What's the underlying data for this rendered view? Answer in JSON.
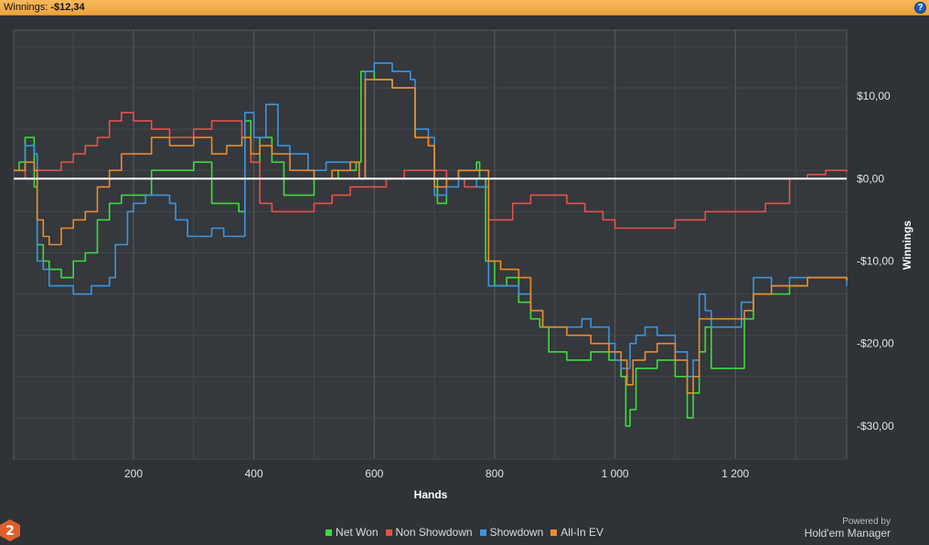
{
  "header": {
    "label": "Winnings:",
    "value": "-$12,34",
    "help_icon": "?"
  },
  "brand": {
    "powered": "Powered by",
    "name": "Hold'em Manager",
    "logo_text": "2"
  },
  "chart_data": {
    "type": "line",
    "xlabel": "Hands",
    "ylabel": "Winnings",
    "xlim": [
      1,
      1385
    ],
    "ylim": [
      -34,
      18
    ],
    "x_ticks": [
      200,
      400,
      600,
      800,
      1000,
      1200
    ],
    "x_tick_labels": [
      "200",
      "400",
      "600",
      "800",
      "1 000",
      "1 200"
    ],
    "y_ticks": [
      10,
      0,
      -10,
      -20,
      -30
    ],
    "y_tick_labels": [
      "$10,00",
      "$0,00",
      "-$10,00",
      "-$20,00",
      "-$30,00"
    ],
    "grid": true,
    "legend_position": "bottom",
    "series": [
      {
        "name": "Net Won",
        "color": "#3ddc3d",
        "points": [
          [
            1,
            1
          ],
          [
            10,
            2
          ],
          [
            20,
            5
          ],
          [
            30,
            5
          ],
          [
            35,
            -1
          ],
          [
            40,
            -8
          ],
          [
            50,
            -10
          ],
          [
            60,
            -11
          ],
          [
            80,
            -12
          ],
          [
            100,
            -10
          ],
          [
            120,
            -9
          ],
          [
            140,
            -5
          ],
          [
            160,
            -3
          ],
          [
            180,
            -2
          ],
          [
            200,
            -2
          ],
          [
            230,
            1
          ],
          [
            260,
            1
          ],
          [
            300,
            2
          ],
          [
            330,
            -3
          ],
          [
            350,
            -3
          ],
          [
            375,
            -4
          ],
          [
            385,
            7
          ],
          [
            395,
            2
          ],
          [
            410,
            5
          ],
          [
            430,
            2
          ],
          [
            450,
            -2
          ],
          [
            480,
            -2
          ],
          [
            500,
            0
          ],
          [
            520,
            0
          ],
          [
            540,
            1
          ],
          [
            555,
            1
          ],
          [
            570,
            2
          ],
          [
            578,
            13
          ],
          [
            600,
            12
          ],
          [
            630,
            11
          ],
          [
            660,
            11
          ],
          [
            668,
            5
          ],
          [
            690,
            4
          ],
          [
            700,
            0
          ],
          [
            705,
            -3
          ],
          [
            720,
            0
          ],
          [
            740,
            1
          ],
          [
            755,
            1
          ],
          [
            770,
            2
          ],
          [
            775,
            0
          ],
          [
            785,
            -10
          ],
          [
            800,
            -13
          ],
          [
            820,
            -12
          ],
          [
            840,
            -15
          ],
          [
            860,
            -17
          ],
          [
            875,
            -18
          ],
          [
            890,
            -21
          ],
          [
            920,
            -22
          ],
          [
            945,
            -22
          ],
          [
            960,
            -21
          ],
          [
            990,
            -22
          ],
          [
            1010,
            -24
          ],
          [
            1018,
            -30
          ],
          [
            1025,
            -28
          ],
          [
            1035,
            -23
          ],
          [
            1050,
            -23
          ],
          [
            1070,
            -22
          ],
          [
            1080,
            -22
          ],
          [
            1100,
            -24
          ],
          [
            1115,
            -24
          ],
          [
            1120,
            -29
          ],
          [
            1130,
            -26
          ],
          [
            1140,
            -21
          ],
          [
            1150,
            -18
          ],
          [
            1160,
            -23
          ],
          [
            1180,
            -23
          ],
          [
            1200,
            -23
          ],
          [
            1210,
            -23
          ],
          [
            1215,
            -17
          ],
          [
            1230,
            -14
          ],
          [
            1260,
            -14
          ],
          [
            1290,
            -13
          ],
          [
            1320,
            -12
          ],
          [
            1350,
            -12
          ],
          [
            1385,
            -12.34
          ]
        ]
      },
      {
        "name": "Non Showdown",
        "color": "#e5524a",
        "points": [
          [
            1,
            1
          ],
          [
            20,
            0
          ],
          [
            40,
            1
          ],
          [
            60,
            1
          ],
          [
            80,
            2
          ],
          [
            100,
            3
          ],
          [
            120,
            4
          ],
          [
            140,
            5
          ],
          [
            160,
            7
          ],
          [
            180,
            8
          ],
          [
            200,
            7
          ],
          [
            230,
            6
          ],
          [
            260,
            5
          ],
          [
            300,
            6
          ],
          [
            330,
            7
          ],
          [
            355,
            7
          ],
          [
            380,
            5
          ],
          [
            395,
            2
          ],
          [
            410,
            -3
          ],
          [
            430,
            -4
          ],
          [
            460,
            -4
          ],
          [
            500,
            -3
          ],
          [
            530,
            -2
          ],
          [
            560,
            -1
          ],
          [
            590,
            -1
          ],
          [
            620,
            0
          ],
          [
            650,
            1
          ],
          [
            680,
            1
          ],
          [
            720,
            0
          ],
          [
            750,
            -1
          ],
          [
            770,
            -1
          ],
          [
            790,
            -5
          ],
          [
            830,
            -3
          ],
          [
            860,
            -2
          ],
          [
            890,
            -2
          ],
          [
            920,
            -3
          ],
          [
            950,
            -4
          ],
          [
            980,
            -5
          ],
          [
            1000,
            -6
          ],
          [
            1050,
            -6
          ],
          [
            1100,
            -5
          ],
          [
            1150,
            -4
          ],
          [
            1200,
            -4
          ],
          [
            1250,
            -3
          ],
          [
            1290,
            0
          ],
          [
            1320,
            0.5
          ],
          [
            1350,
            1
          ],
          [
            1385,
            0.8
          ]
        ]
      },
      {
        "name": "Showdown",
        "color": "#3a95e0",
        "points": [
          [
            1,
            1
          ],
          [
            20,
            4
          ],
          [
            35,
            3
          ],
          [
            40,
            -10
          ],
          [
            50,
            -11
          ],
          [
            60,
            -13
          ],
          [
            100,
            -14
          ],
          [
            130,
            -13
          ],
          [
            160,
            -12
          ],
          [
            170,
            -8
          ],
          [
            190,
            -4
          ],
          [
            200,
            -3
          ],
          [
            220,
            -2
          ],
          [
            240,
            -2
          ],
          [
            260,
            -3
          ],
          [
            270,
            -5
          ],
          [
            290,
            -7
          ],
          [
            330,
            -6
          ],
          [
            350,
            -7
          ],
          [
            375,
            -7
          ],
          [
            385,
            8
          ],
          [
            400,
            5
          ],
          [
            420,
            9
          ],
          [
            440,
            4
          ],
          [
            460,
            3
          ],
          [
            490,
            1
          ],
          [
            520,
            2
          ],
          [
            560,
            2
          ],
          [
            575,
            0
          ],
          [
            585,
            13
          ],
          [
            600,
            14
          ],
          [
            630,
            13
          ],
          [
            660,
            12
          ],
          [
            668,
            6
          ],
          [
            690,
            5
          ],
          [
            700,
            -2
          ],
          [
            720,
            -1
          ],
          [
            740,
            0
          ],
          [
            770,
            -1
          ],
          [
            790,
            -13
          ],
          [
            810,
            -13
          ],
          [
            840,
            -14
          ],
          [
            860,
            -16
          ],
          [
            880,
            -18
          ],
          [
            920,
            -18
          ],
          [
            945,
            -17
          ],
          [
            960,
            -18
          ],
          [
            990,
            -20
          ],
          [
            1000,
            -22
          ],
          [
            1010,
            -23
          ],
          [
            1025,
            -20
          ],
          [
            1035,
            -19
          ],
          [
            1050,
            -18
          ],
          [
            1070,
            -19
          ],
          [
            1080,
            -19
          ],
          [
            1100,
            -21
          ],
          [
            1115,
            -21
          ],
          [
            1120,
            -24
          ],
          [
            1130,
            -22
          ],
          [
            1140,
            -14
          ],
          [
            1150,
            -16
          ],
          [
            1160,
            -18
          ],
          [
            1200,
            -18
          ],
          [
            1210,
            -15
          ],
          [
            1230,
            -12
          ],
          [
            1260,
            -13
          ],
          [
            1290,
            -12
          ],
          [
            1320,
            -12
          ],
          [
            1350,
            -12
          ],
          [
            1385,
            -13
          ]
        ]
      },
      {
        "name": "All-In EV",
        "color": "#ee8a2c",
        "points": [
          [
            1,
            1
          ],
          [
            20,
            2
          ],
          [
            35,
            1
          ],
          [
            40,
            -5
          ],
          [
            50,
            -7
          ],
          [
            60,
            -8
          ],
          [
            80,
            -6
          ],
          [
            100,
            -5
          ],
          [
            120,
            -4
          ],
          [
            140,
            -1
          ],
          [
            160,
            1
          ],
          [
            180,
            3
          ],
          [
            200,
            3
          ],
          [
            230,
            5
          ],
          [
            260,
            4
          ],
          [
            300,
            5
          ],
          [
            330,
            3
          ],
          [
            355,
            4
          ],
          [
            380,
            5
          ],
          [
            395,
            3
          ],
          [
            410,
            4
          ],
          [
            430,
            3
          ],
          [
            460,
            1
          ],
          [
            500,
            0
          ],
          [
            530,
            1
          ],
          [
            560,
            2
          ],
          [
            575,
            0
          ],
          [
            585,
            12
          ],
          [
            600,
            12
          ],
          [
            630,
            11
          ],
          [
            660,
            11
          ],
          [
            668,
            5
          ],
          [
            690,
            4
          ],
          [
            700,
            -1
          ],
          [
            720,
            0
          ],
          [
            740,
            1
          ],
          [
            770,
            1
          ],
          [
            790,
            -10
          ],
          [
            810,
            -11
          ],
          [
            840,
            -12
          ],
          [
            860,
            -16
          ],
          [
            880,
            -18
          ],
          [
            920,
            -19
          ],
          [
            945,
            -19
          ],
          [
            960,
            -20
          ],
          [
            990,
            -21
          ],
          [
            1010,
            -22
          ],
          [
            1020,
            -25
          ],
          [
            1030,
            -22
          ],
          [
            1050,
            -21
          ],
          [
            1070,
            -20
          ],
          [
            1080,
            -20
          ],
          [
            1100,
            -22
          ],
          [
            1115,
            -22
          ],
          [
            1120,
            -26
          ],
          [
            1130,
            -24
          ],
          [
            1140,
            -17
          ],
          [
            1150,
            -17
          ],
          [
            1170,
            -17
          ],
          [
            1200,
            -17
          ],
          [
            1215,
            -16
          ],
          [
            1230,
            -14
          ],
          [
            1260,
            -13
          ],
          [
            1290,
            -13
          ],
          [
            1320,
            -12
          ],
          [
            1350,
            -12
          ],
          [
            1385,
            -12.34
          ]
        ]
      }
    ]
  }
}
